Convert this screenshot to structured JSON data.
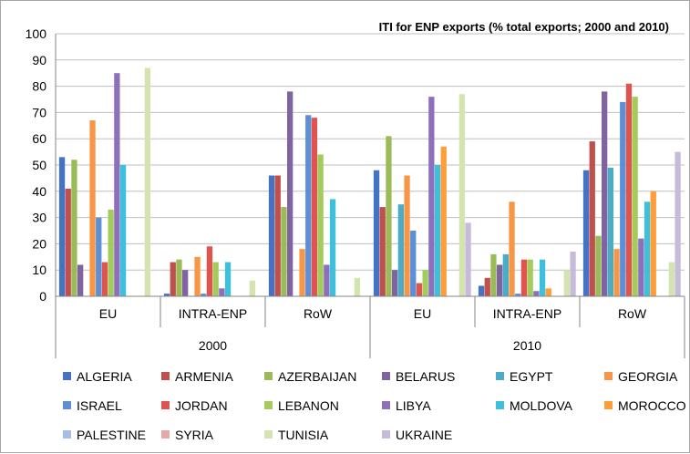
{
  "chart_data": {
    "type": "bar",
    "title": "ITI for ENP exports (% total exports; 2000 and 2010)",
    "xlabel": "",
    "ylabel": "",
    "ylim": [
      0,
      100
    ],
    "yticks": [
      "0",
      "10",
      "20",
      "30",
      "40",
      "50",
      "60",
      "70",
      "80",
      "90",
      "100"
    ],
    "grid": true,
    "legend_position": "bottom",
    "years": [
      "2000",
      "2010"
    ],
    "categories": [
      "EU",
      "INTRA-ENP",
      "RoW",
      "EU",
      "INTRA-ENP",
      "RoW"
    ],
    "category_year": [
      "2000",
      "2000",
      "2000",
      "2010",
      "2010",
      "2010"
    ],
    "series": [
      {
        "name": "ALGERIA",
        "color": "#4472c4",
        "values": [
          53,
          1,
          46,
          48,
          4,
          48
        ]
      },
      {
        "name": "ARMENIA",
        "color": "#c0504d",
        "values": [
          41,
          13,
          46,
          34,
          7,
          59
        ]
      },
      {
        "name": "AZERBAIJAN",
        "color": "#9bbb59",
        "values": [
          52,
          14,
          34,
          61,
          16,
          23
        ]
      },
      {
        "name": "BELARUS",
        "color": "#8064a2",
        "values": [
          12,
          10,
          78,
          10,
          12,
          78
        ]
      },
      {
        "name": "EGYPT",
        "color": "#4bacc6",
        "values": [
          0,
          0,
          0,
          35,
          16,
          49
        ]
      },
      {
        "name": "GEORGIA",
        "color": "#f79646",
        "values": [
          67,
          15,
          18,
          46,
          36,
          18
        ]
      },
      {
        "name": "ISRAEL",
        "color": "#5b8fd6",
        "values": [
          30,
          1,
          69,
          25,
          1,
          74
        ]
      },
      {
        "name": "JORDAN",
        "color": "#e0534e",
        "values": [
          13,
          19,
          68,
          5,
          14,
          81
        ]
      },
      {
        "name": "LEBANON",
        "color": "#a3cc5c",
        "values": [
          33,
          13,
          54,
          10,
          14,
          76
        ]
      },
      {
        "name": "LIBYA",
        "color": "#8e6fbb",
        "values": [
          85,
          3,
          12,
          76,
          2,
          22
        ]
      },
      {
        "name": "MOLDOVA",
        "color": "#3cc0dc",
        "values": [
          50,
          13,
          37,
          50,
          14,
          36
        ]
      },
      {
        "name": "MOROCCO",
        "color": "#ff9d3a",
        "values": [
          0,
          0,
          0,
          57,
          3,
          40
        ]
      },
      {
        "name": "PALESTINE",
        "color": "#a6bde6",
        "values": [
          0,
          0,
          0,
          0,
          0,
          0
        ]
      },
      {
        "name": "SYRIA",
        "color": "#e4a8a6",
        "values": [
          0,
          0,
          0,
          0,
          0,
          0
        ]
      },
      {
        "name": "TUNISIA",
        "color": "#d4e4b0",
        "values": [
          87,
          6,
          7,
          77,
          10,
          13
        ]
      },
      {
        "name": "UKRAINE",
        "color": "#c6bcd9",
        "values": [
          0,
          0,
          0,
          28,
          17,
          55
        ]
      }
    ]
  }
}
